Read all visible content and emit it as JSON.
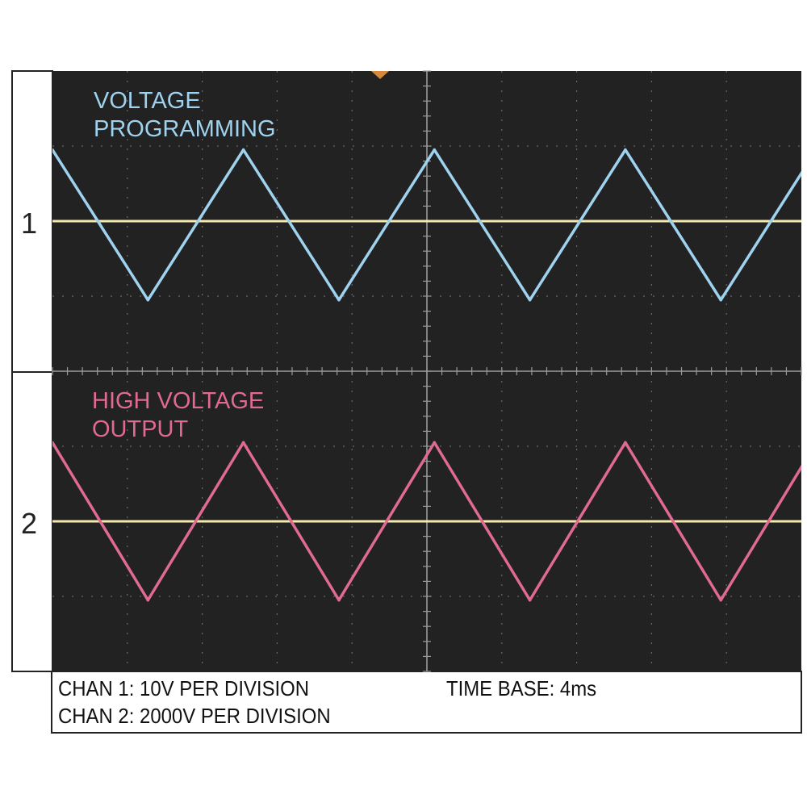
{
  "colors": {
    "screen": "#222222",
    "grid": "#6a6a6a",
    "baseline": "#f4e8b0",
    "ch1_trace": "#9fd2ee",
    "ch2_trace": "#e06a92",
    "trigger_marker": "#d88a3a"
  },
  "channel_numbers": [
    "1",
    "2"
  ],
  "trace_labels": {
    "ch1": [
      "VOLTAGE",
      "PROGRAMMING"
    ],
    "ch2": [
      "HIGH VOLTAGE",
      "OUTPUT"
    ]
  },
  "caption": {
    "ch1_scale": "CHAN 1: 10V PER DIVISION",
    "ch2_scale": "CHAN 2: 2000V PER DIVISION",
    "time_base": "TIME BASE: 4ms"
  },
  "chart_data": {
    "type": "line",
    "grid": {
      "x_divisions": 10,
      "y_divisions": 8,
      "on": true
    },
    "x_range_divisions": [
      0,
      10
    ],
    "series": [
      {
        "name": "VOLTAGE PROGRAMMING",
        "channel": 1,
        "baseline_division": 2,
        "x": [
          0,
          2.55,
          5.1,
          7.65,
          10.2
        ],
        "peaks_x": [
          0,
          2.55,
          5.1,
          7.65,
          10.2
        ],
        "troughs_x": [
          1.275,
          3.825,
          6.375,
          8.925
        ],
        "peak_division": 0.95,
        "trough_division": -1.05
      },
      {
        "name": "HIGH VOLTAGE OUTPUT",
        "channel": 2,
        "baseline_division": -2,
        "peaks_x": [
          0,
          2.55,
          5.1,
          7.65,
          10.2
        ],
        "troughs_x": [
          1.275,
          3.825,
          6.375,
          8.925
        ],
        "peak_division": 1.05,
        "trough_division": -1.05
      }
    ]
  }
}
